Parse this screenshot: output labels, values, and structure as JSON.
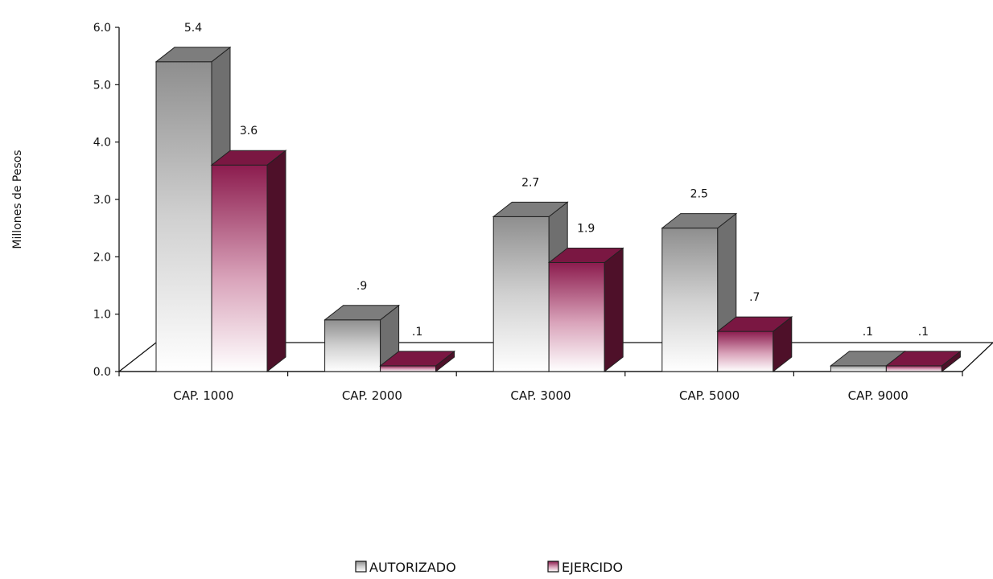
{
  "chart_data": {
    "type": "bar",
    "style": "3d-clustered-column",
    "title": "",
    "xlabel": "",
    "ylabel": "Millones de Pesos",
    "ylim": [
      0,
      6
    ],
    "y_ticks": [
      "0.0",
      "1.0",
      "2.0",
      "3.0",
      "4.0",
      "5.0",
      "6.0"
    ],
    "categories": [
      "CAP. 1000",
      "CAP. 2000",
      "CAP. 3000",
      "CAP. 5000",
      "CAP. 9000"
    ],
    "series": [
      {
        "name": "AUTORIZADO",
        "values": [
          5.4,
          0.9,
          2.7,
          2.5,
          0.1
        ],
        "labels": [
          "5.4",
          ".9",
          "2.7",
          "2.5",
          ".1"
        ],
        "color": "#9a9a9a"
      },
      {
        "name": "EJERCIDO",
        "values": [
          3.6,
          0.1,
          1.9,
          0.7,
          0.1
        ],
        "labels": [
          "3.6",
          ".1",
          "1.9",
          ".7",
          ".1"
        ],
        "color": "#8c1c4e"
      }
    ],
    "legend": {
      "position": "bottom"
    },
    "grid": false
  }
}
